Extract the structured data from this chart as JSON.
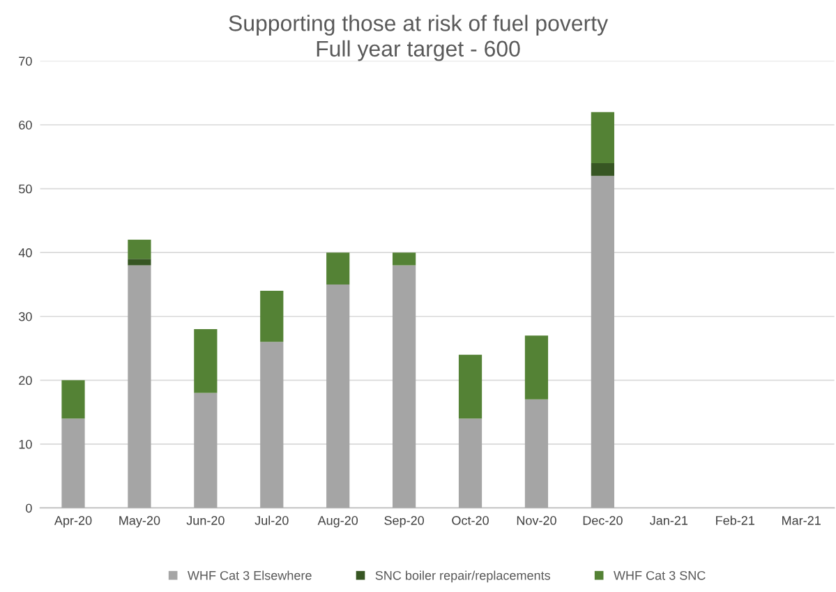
{
  "chart_data": {
    "type": "bar",
    "stacked": true,
    "title": "Supporting those at risk of fuel poverty",
    "subtitle": "Full year target - 600",
    "categories": [
      "Apr-20",
      "May-20",
      "Jun-20",
      "Jul-20",
      "Aug-20",
      "Sep-20",
      "Oct-20",
      "Nov-20",
      "Dec-20",
      "Jan-21",
      "Feb-21",
      "Mar-21"
    ],
    "series": [
      {
        "name": "WHF Cat 3 Elsewhere",
        "color": "#a5a5a5",
        "values": [
          14,
          38,
          18,
          26,
          35,
          38,
          14,
          17,
          52,
          null,
          null,
          null
        ]
      },
      {
        "name": "SNC boiler repair/replacements",
        "color": "#375623",
        "values": [
          0,
          1,
          0,
          0,
          0,
          0,
          0,
          0,
          2,
          null,
          null,
          null
        ]
      },
      {
        "name": "WHF Cat 3 SNC",
        "color": "#548235",
        "values": [
          6,
          3,
          10,
          8,
          5,
          2,
          10,
          10,
          8,
          null,
          null,
          null
        ]
      }
    ],
    "ylim": [
      0,
      70
    ],
    "yticks": [
      0,
      10,
      20,
      30,
      40,
      50,
      60,
      70
    ],
    "grid": "y",
    "legend": "bottom"
  }
}
